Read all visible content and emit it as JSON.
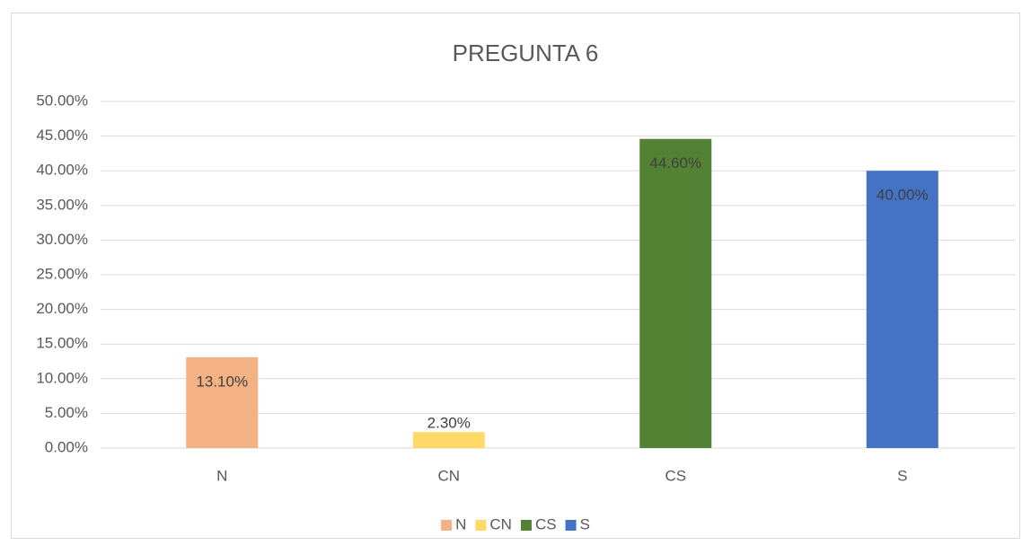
{
  "chart_data": {
    "type": "bar",
    "title": "PREGUNTA 6",
    "categories": [
      "N",
      "CN",
      "CS",
      "S"
    ],
    "values": [
      13.1,
      2.3,
      44.6,
      40.0
    ],
    "value_labels": [
      "13.10%",
      "2.30%",
      "44.60%",
      "40.00%"
    ],
    "colors": [
      "#f4b183",
      "#ffd966",
      "#548235",
      "#4472c4"
    ],
    "ylim": [
      0,
      50
    ],
    "yticks": [
      {
        "value": 0,
        "label": "0.00%"
      },
      {
        "value": 5,
        "label": "5.00%"
      },
      {
        "value": 10,
        "label": "10.00%"
      },
      {
        "value": 15,
        "label": "15.00%"
      },
      {
        "value": 20,
        "label": "20.00%"
      },
      {
        "value": 25,
        "label": "25.00%"
      },
      {
        "value": 30,
        "label": "30.00%"
      },
      {
        "value": 35,
        "label": "35.00%"
      },
      {
        "value": 40,
        "label": "40.00%"
      },
      {
        "value": 45,
        "label": "45.00%"
      },
      {
        "value": 50,
        "label": "50.00%"
      }
    ],
    "grid": true,
    "legend": "bottom"
  }
}
